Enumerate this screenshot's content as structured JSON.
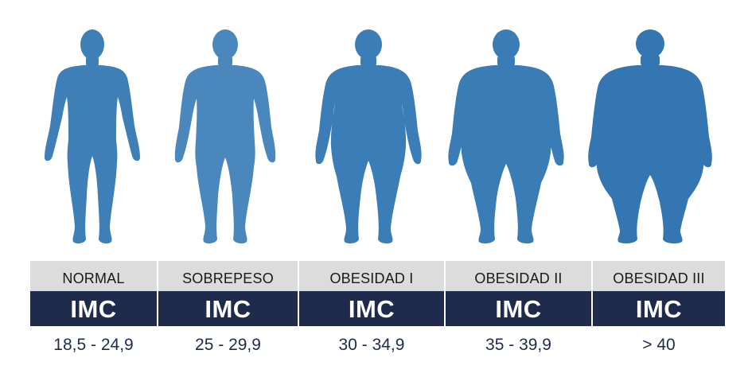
{
  "accent_colors": {
    "figure_normal": "#3e7fb8",
    "figure_sobrepeso": "#4a87bc",
    "figure_obesidad_1": "#3b7db7",
    "figure_obesidad_2": "#3a7cb6",
    "figure_obesidad_3": "#3476b1",
    "band": "#1e2b4d",
    "label_bg": "#dcdcdc"
  },
  "categories": [
    {
      "label": "NORMAL",
      "imc": "IMC",
      "range": "18,5 - 24,9",
      "icon": "body-silhouette-icon"
    },
    {
      "label": "SOBREPESO",
      "imc": "IMC",
      "range": "25 - 29,9",
      "icon": "body-silhouette-icon"
    },
    {
      "label": "OBESIDAD I",
      "imc": "IMC",
      "range": "30 - 34,9",
      "icon": "body-silhouette-icon"
    },
    {
      "label": "OBESIDAD II",
      "imc": "IMC",
      "range": "35 - 39,9",
      "icon": "body-silhouette-icon"
    },
    {
      "label": "OBESIDAD III",
      "imc": "IMC",
      "range": "> 40",
      "icon": "body-silhouette-icon"
    }
  ]
}
